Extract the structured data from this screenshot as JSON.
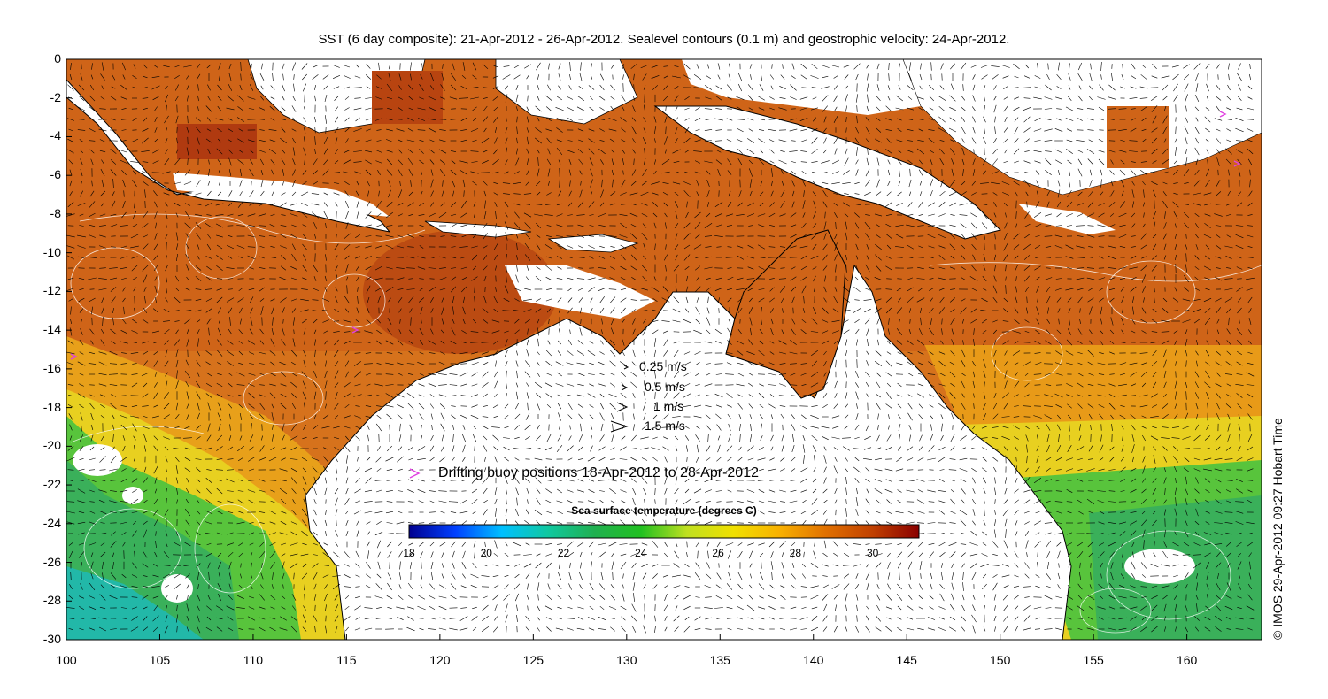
{
  "title": "SST (6 day composite): 21-Apr-2012 - 26-Apr-2012. Sealevel contours (0.1 m) and geostrophic velocity: 24-Apr-2012.",
  "credit": "© IMOS 29-Apr-2012 09:27 Hobart Time",
  "axes": {
    "x_ticks": [
      "100",
      "105",
      "110",
      "115",
      "120",
      "125",
      "130",
      "135",
      "140",
      "145",
      "150",
      "155",
      "160"
    ],
    "y_ticks": [
      "0",
      "-2",
      "-4",
      "-6",
      "-8",
      "-10",
      "-12",
      "-14",
      "-16",
      "-18",
      "-20",
      "-22",
      "-24",
      "-26",
      "-28",
      "-30"
    ],
    "xlim": [
      100,
      164
    ],
    "ylim": [
      -30,
      0
    ]
  },
  "velocity_legend": [
    {
      "label": "0.25 m/s",
      "speed": 0.25
    },
    {
      "label": "0.5 m/s",
      "speed": 0.5
    },
    {
      "label": "1 m/s",
      "speed": 1
    },
    {
      "label": "1.5 m/s",
      "speed": 1.5
    }
  ],
  "buoy_legend": {
    "label": "Drifting buoy positions 18-Apr-2012 to 28-Apr-2012",
    "color": "#e040e0",
    "symbol": ">"
  },
  "colorbar": {
    "title": "Sea surface temperature (degrees C)",
    "ticks": [
      "18",
      "20",
      "22",
      "24",
      "26",
      "28",
      "30"
    ],
    "range": [
      18,
      31.2
    ],
    "colors": [
      "#00008f",
      "#0040ff",
      "#00c0ff",
      "#10c8a0",
      "#20b050",
      "#20c020",
      "#c0e020",
      "#f0e000",
      "#f8b000",
      "#e07000",
      "#c04000",
      "#8a0000"
    ]
  },
  "colors": {
    "land": "#ffffff",
    "sst_warm": "#d0651a",
    "sst_hot": "#b8440f",
    "sst_mid": "#e89a18",
    "sst_cool_yellow": "#e8d020",
    "sst_green": "#50c040",
    "sst_teal": "#20b8a0",
    "contour": "#ffffff",
    "coast": "#000000"
  }
}
